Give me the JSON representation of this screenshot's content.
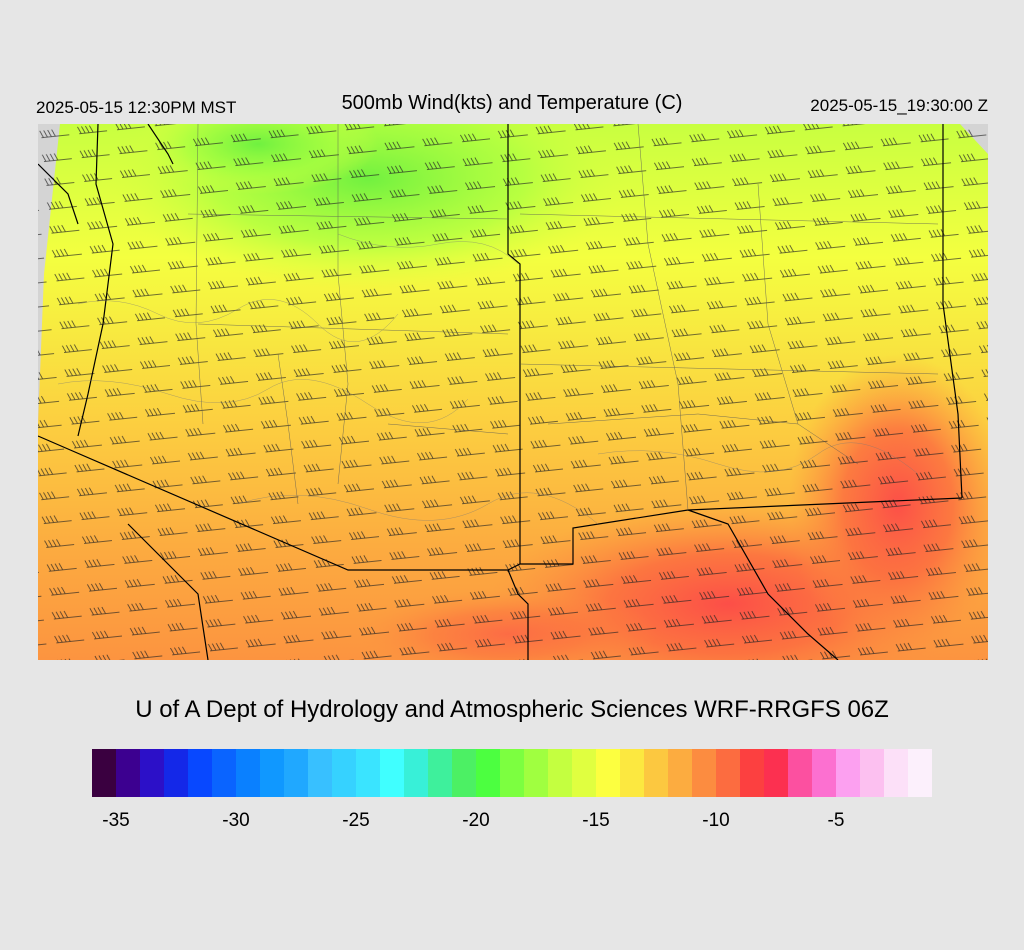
{
  "header": {
    "local_time": "2025-05-15 12:30PM MST",
    "title": "500mb Wind(kts) and Temperature (C)",
    "valid_time": "2025-05-15_19:30:00 Z"
  },
  "credit": "U of A Dept of Hydrology and Atmospheric Sciences WRF-RRGFS 06Z",
  "colorbar": {
    "colors": [
      "#3a0040",
      "#3c0090",
      "#2c10c8",
      "#1428e8",
      "#0848ff",
      "#0a64ff",
      "#0a80ff",
      "#1098ff",
      "#20a8ff",
      "#38c0ff",
      "#36d2ff",
      "#3ae4ff",
      "#40ffff",
      "#38f0d8",
      "#3ef09c",
      "#4cf064",
      "#4cff40",
      "#7cff40",
      "#a0ff40",
      "#c4ff40",
      "#e0ff40",
      "#fcff40",
      "#fce840",
      "#fcc840",
      "#fcac40",
      "#fc8c40",
      "#fc6c40",
      "#fc4040",
      "#fc3050",
      "#fc50a0",
      "#fc70d0",
      "#fca0f0",
      "#fcc0f0",
      "#fce0f8",
      "#fcf0fc"
    ],
    "ticks": [
      "-35",
      "-30",
      "-25",
      "-20",
      "-15",
      "-10",
      "-5"
    ]
  }
}
